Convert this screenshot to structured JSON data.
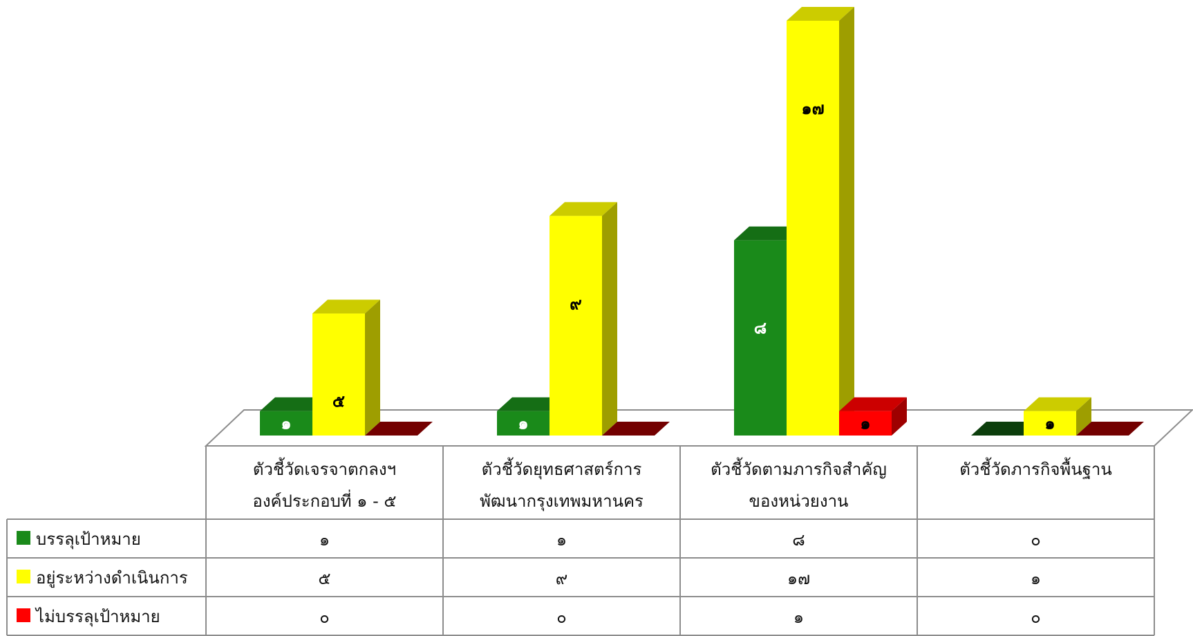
{
  "chart_data": {
    "type": "bar",
    "categories": [
      [
        "ตัวชี้วัดเจรจาตกลงฯ",
        "องค์ประกอบที่ ๑ - ๕"
      ],
      [
        "ตัวชี้วัดยุทธศาสตร์การ",
        "พัฒนากรุงเทพมหานคร"
      ],
      [
        "ตัวชี้วัดตามภารกิจสำคัญ",
        "ของหน่วยงาน"
      ],
      [
        "ตัวชี้วัดภารกิจพื้นฐาน"
      ]
    ],
    "series": [
      {
        "name": "บรรลุเป้าหมาย",
        "color": "#1a8a1a",
        "values": [
          1,
          1,
          8,
          0
        ],
        "labels": [
          "๑",
          "๑",
          "๘",
          "๐"
        ]
      },
      {
        "name": "อยู่ระหว่างดำเนินการ",
        "color": "#ffff00",
        "values": [
          5,
          9,
          17,
          1
        ],
        "labels": [
          "๕",
          "๙",
          "๑๗",
          "๑"
        ]
      },
      {
        "name": "ไม่บรรลุเป้าหมาย",
        "color": "#ff0000",
        "values": [
          0,
          0,
          1,
          0
        ],
        "labels": [
          "๐",
          "๐",
          "๑",
          "๐"
        ]
      }
    ],
    "ylim": [
      0,
      17
    ],
    "legend": "data-table",
    "grid": false
  }
}
